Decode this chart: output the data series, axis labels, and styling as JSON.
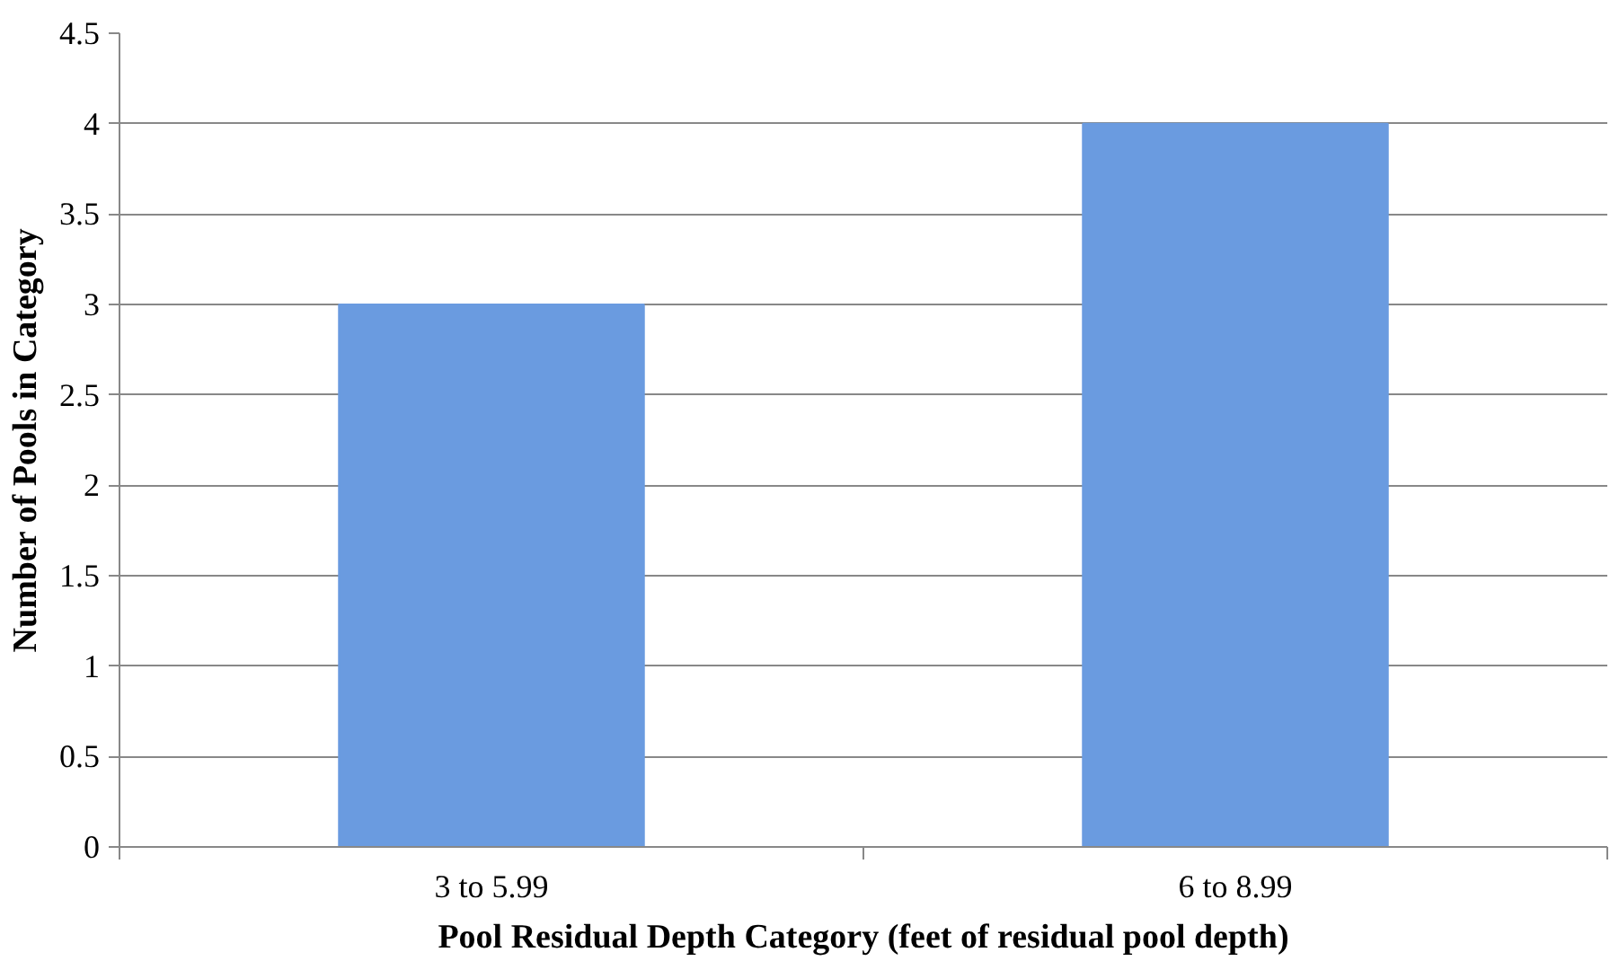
{
  "chart_data": {
    "type": "bar",
    "xlabel": "Pool Residual Depth Category (feet of residual pool depth)",
    "ylabel": "Number of Pools in Category",
    "categories": [
      "3 to 5.99",
      "6 to 8.99"
    ],
    "values": [
      3,
      4
    ],
    "color": "#6a9be0",
    "ylim": [
      0,
      4.5
    ],
    "yticks": [
      0,
      0.5,
      1,
      1.5,
      2,
      2.5,
      3,
      3.5,
      4,
      4.5
    ],
    "grid": "y"
  }
}
